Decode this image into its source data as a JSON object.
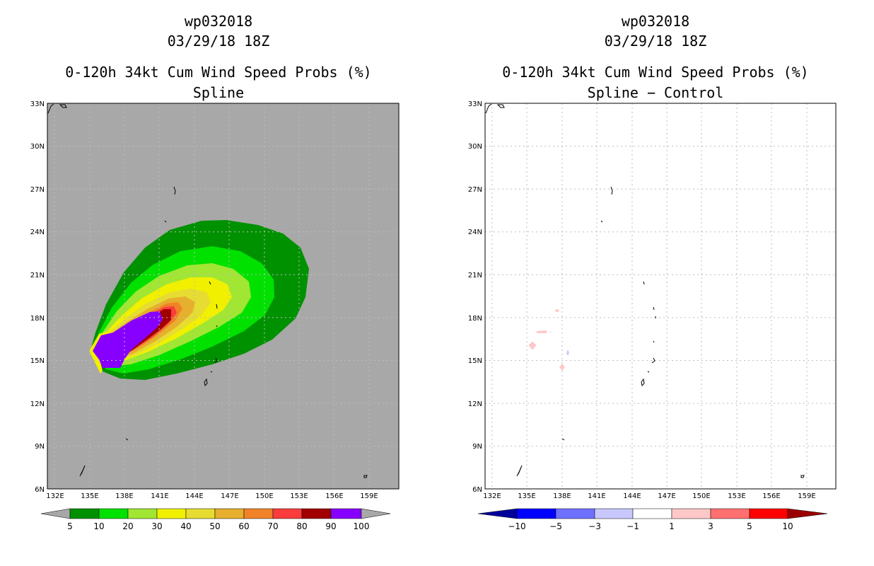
{
  "colors": {
    "land_mask_gray": "#a8a8a8",
    "prob_fill": [
      "#009100",
      "#00e100",
      "#a0e632",
      "#f0f000",
      "#e6dc32",
      "#e6af2d",
      "#f08228",
      "#fa3c3c",
      "#a00000",
      "#8700ff"
    ],
    "diff_fill": [
      "#00009b",
      "#0000ff",
      "#7070ff",
      "#c8c8ff",
      "#ffffff",
      "#ffc8c8",
      "#ff7070",
      "#ff0000",
      "#9b0000"
    ]
  },
  "panels": [
    {
      "name": "left",
      "title_storm": "wp032018",
      "title_time": "03/29/18 18Z",
      "title_product": "0-120h 34kt Cum Wind Speed Probs (%)",
      "title_sub": "Spline",
      "lat_labels": [
        "33N",
        "30N",
        "27N",
        "24N",
        "21N",
        "18N",
        "15N",
        "12N",
        "9N",
        "6N"
      ],
      "lon_labels": [
        "132E",
        "135E",
        "138E",
        "141E",
        "144E",
        "147E",
        "150E",
        "153E",
        "156E",
        "159E"
      ],
      "colorbar_labels": [
        "5",
        "10",
        "20",
        "30",
        "40",
        "50",
        "60",
        "70",
        "80",
        "90",
        "100"
      ]
    },
    {
      "name": "right",
      "title_storm": "wp032018",
      "title_time": "03/29/18 18Z",
      "title_product": "0-120h 34kt Cum Wind Speed Probs (%)",
      "title_sub": "Spline − Control",
      "lat_labels": [
        "33N",
        "30N",
        "27N",
        "24N",
        "21N",
        "18N",
        "15N",
        "12N",
        "9N",
        "6N"
      ],
      "lon_labels": [
        "132E",
        "135E",
        "138E",
        "141E",
        "144E",
        "147E",
        "150E",
        "153E",
        "156E",
        "159E"
      ],
      "colorbar_labels": [
        "−10",
        "−5",
        "−3",
        "−1",
        "1",
        "3",
        "5",
        "10"
      ]
    }
  ]
}
